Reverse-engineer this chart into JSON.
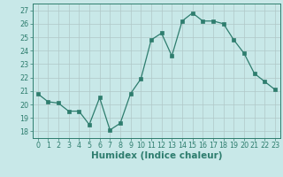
{
  "x": [
    0,
    1,
    2,
    3,
    4,
    5,
    6,
    7,
    8,
    9,
    10,
    11,
    12,
    13,
    14,
    15,
    16,
    17,
    18,
    19,
    20,
    21,
    22,
    23
  ],
  "y": [
    20.8,
    20.2,
    20.1,
    19.5,
    19.5,
    18.5,
    20.5,
    18.1,
    18.6,
    20.8,
    21.9,
    24.8,
    25.3,
    23.6,
    26.2,
    26.8,
    26.2,
    26.2,
    26.0,
    24.8,
    23.8,
    22.3,
    21.7,
    21.1
  ],
  "xlabel": "Humidex (Indice chaleur)",
  "ylabel": "",
  "ylim": [
    17.5,
    27.5
  ],
  "xlim": [
    -0.5,
    23.5
  ],
  "yticks": [
    18,
    19,
    20,
    21,
    22,
    23,
    24,
    25,
    26,
    27
  ],
  "xticks": [
    0,
    1,
    2,
    3,
    4,
    5,
    6,
    7,
    8,
    9,
    10,
    11,
    12,
    13,
    14,
    15,
    16,
    17,
    18,
    19,
    20,
    21,
    22,
    23
  ],
  "line_color": "#2e7d6e",
  "marker_color": "#2e7d6e",
  "bg_color": "#c8e8e8",
  "grid_color": "#b0c8c8",
  "axes_color": "#2e7d6e",
  "tick_fontsize": 5.8,
  "xlabel_fontsize": 7.5
}
